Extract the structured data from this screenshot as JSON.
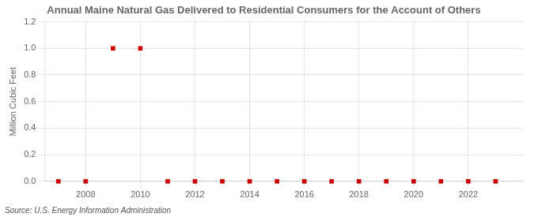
{
  "chart_data": {
    "type": "scatter",
    "title": "Annual Maine Natural Gas Delivered to Residential Consumers for the Account of Others",
    "ylabel": "Million Cubic Feet",
    "annotation": "Source: U.S. Energy Information Administration",
    "x": [
      2007,
      2008,
      2009,
      2010,
      2011,
      2012,
      2013,
      2014,
      2015,
      2016,
      2017,
      2018,
      2019,
      2020,
      2021,
      2022,
      2023
    ],
    "values": [
      0.0,
      0.0,
      1.0,
      1.0,
      0.0,
      0.0,
      0.0,
      0.0,
      0.0,
      0.0,
      0.0,
      0.0,
      0.0,
      0.0,
      0.0,
      0.0,
      0.0
    ],
    "color": "#cc0000",
    "marker": "square",
    "xlim": [
      2006.5,
      2024.0
    ],
    "xticks": [
      2008,
      2010,
      2012,
      2014,
      2016,
      2018,
      2020,
      2022
    ],
    "ylim": [
      0.0,
      1.2
    ],
    "yticks": [
      {
        "value": 0.0,
        "label": "0.0"
      },
      0.2,
      0.4,
      0.6,
      0.8,
      {
        "value": 1.0,
        "label": "1.0"
      },
      1.2
    ],
    "grid": true
  }
}
